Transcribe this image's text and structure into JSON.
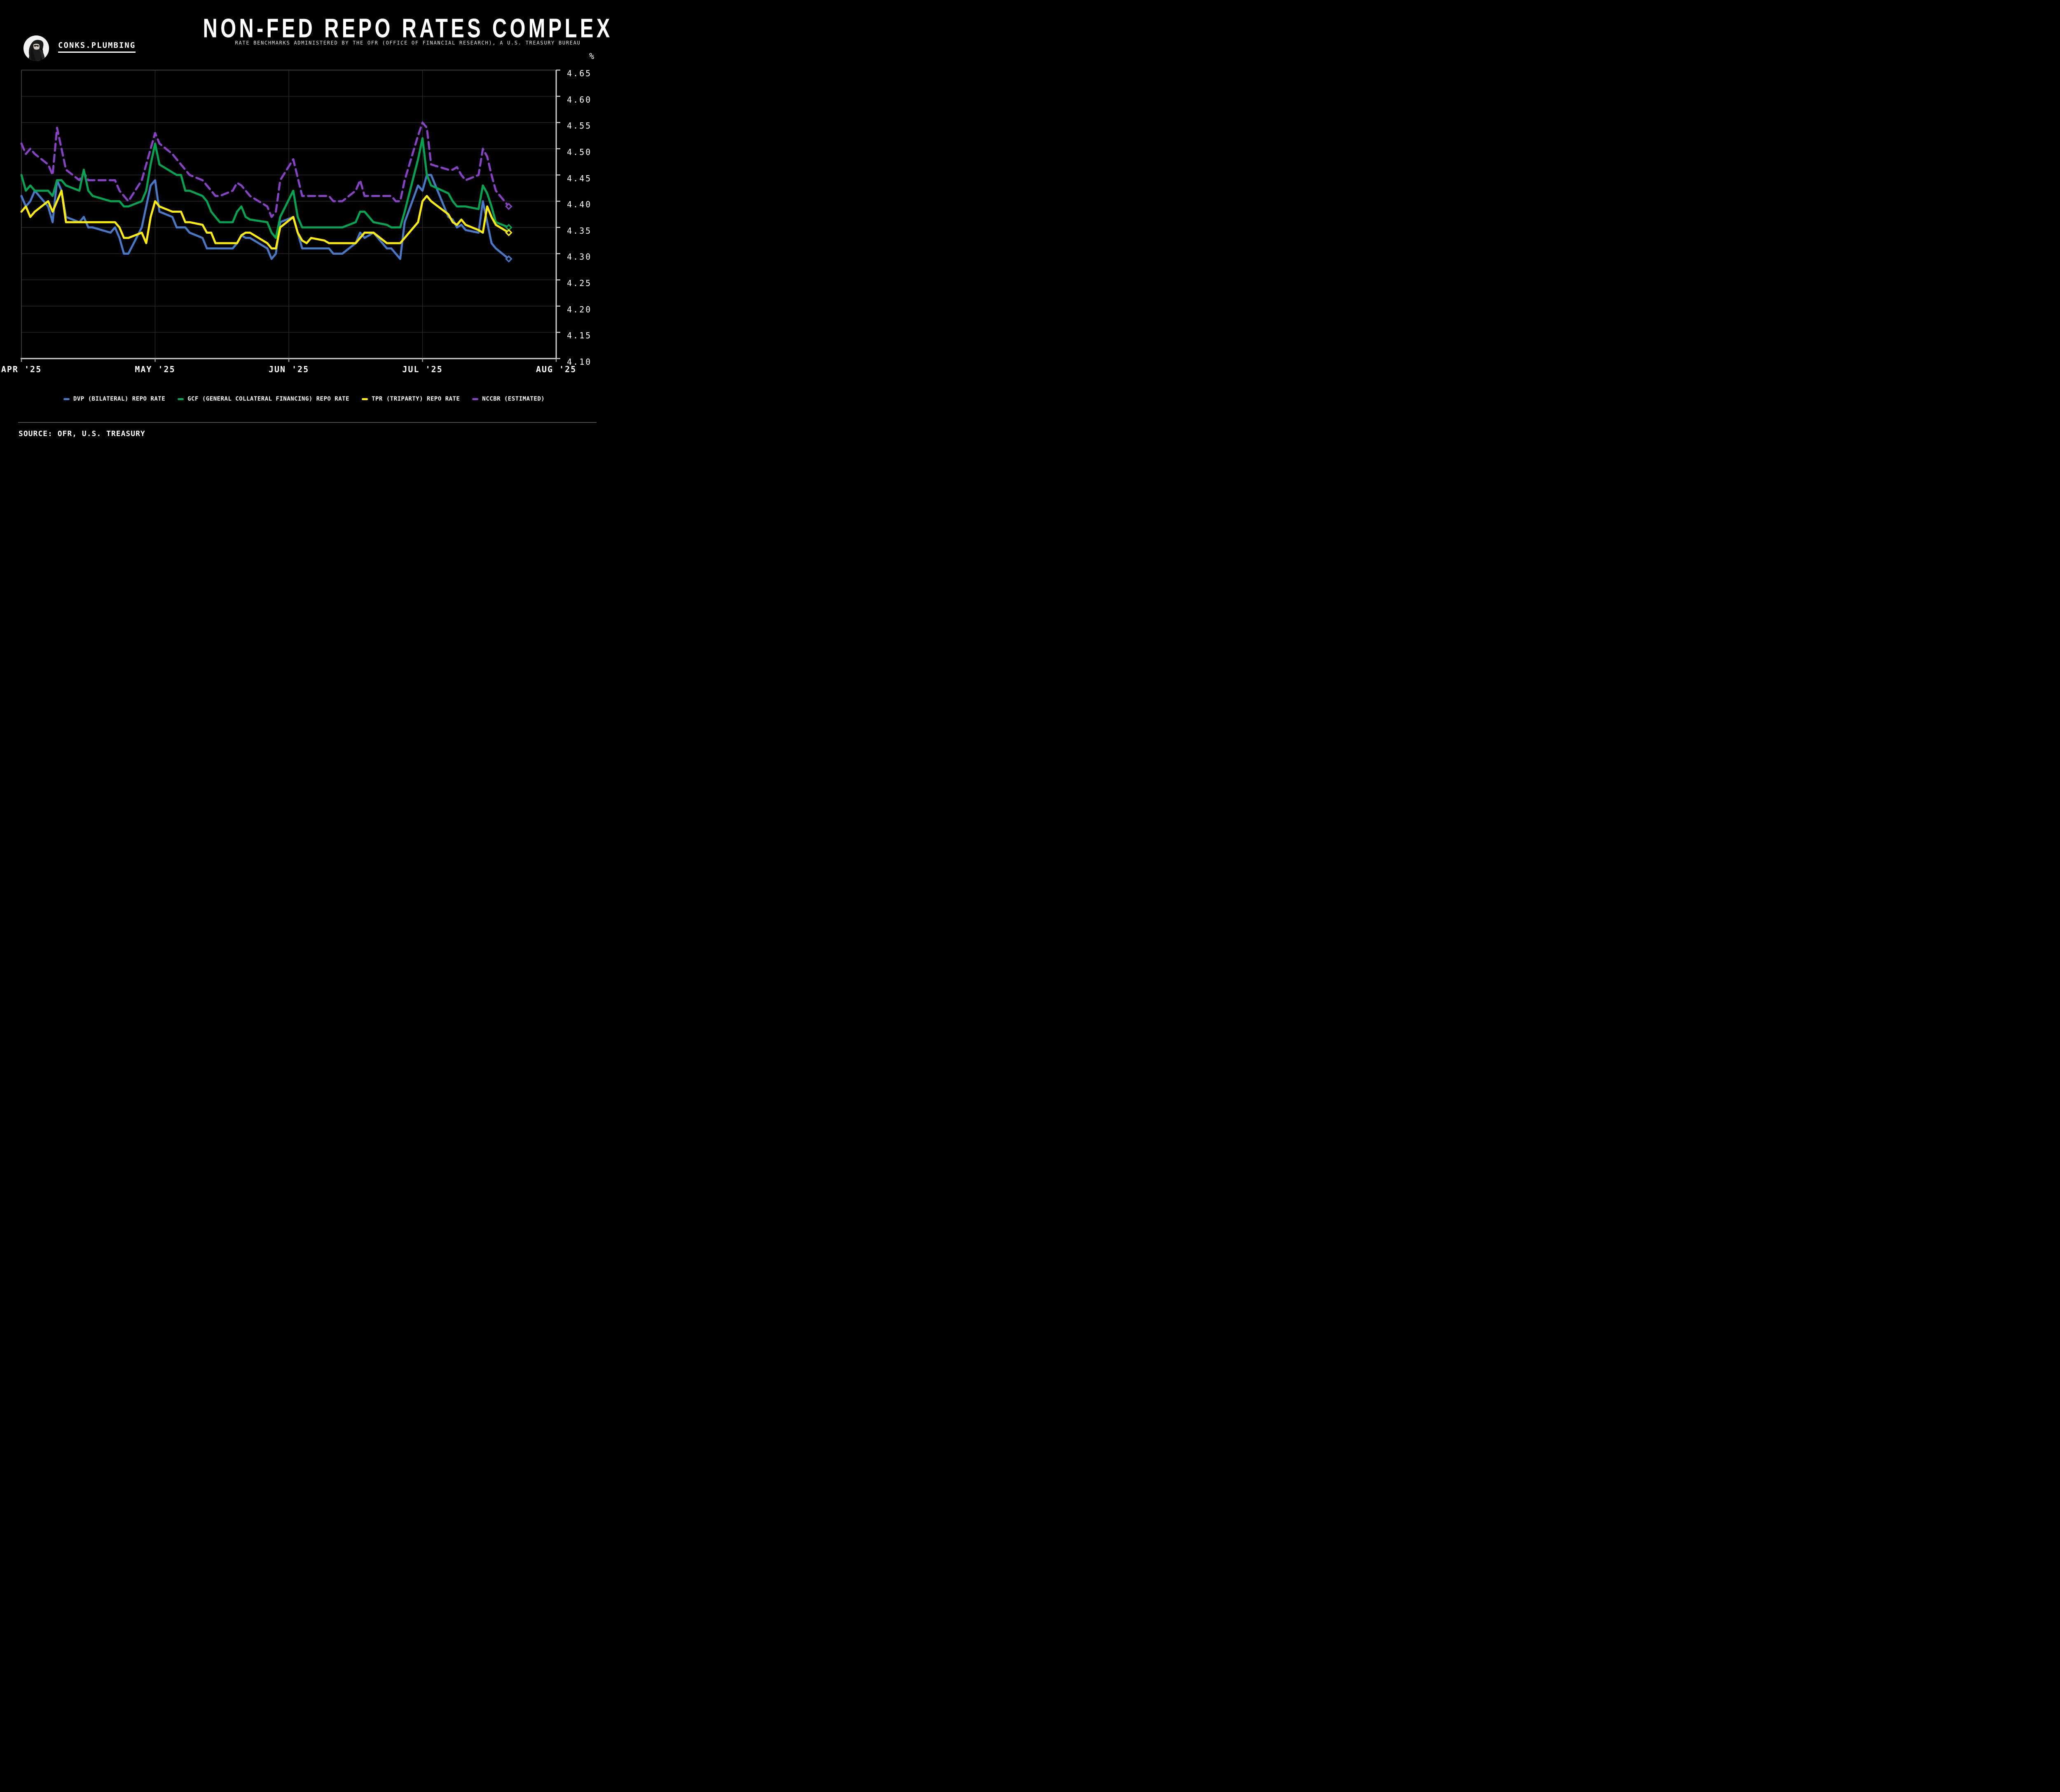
{
  "header": {
    "brand": "CONKS.PLUMBING",
    "title": "NON-FED REPO RATES COMPLEX",
    "subtitle": "RATE BENCHMARKS ADMINISTERED BY THE OFR (OFFICE OF FINANCIAL RESEARCH), A U.S. TREASURY BUREAU"
  },
  "source_line": "SOURCE: OFR, U.S. TREASURY",
  "colors": {
    "background": "#000000",
    "gridline": "#262626",
    "frame_dark": "#3a3a3a",
    "frame_light": "#d2d2d2",
    "dvp_blue": "#4878c8",
    "gcf_green": "#00a651",
    "tpr_yellow": "#ffee00",
    "nccbr_purple": "#8842c8"
  },
  "chart_data": {
    "type": "line",
    "ylabel": "%",
    "ylim": [
      4.1,
      4.65
    ],
    "yticks": [
      4.65,
      4.6,
      4.55,
      4.5,
      4.45,
      4.4,
      4.35,
      4.3,
      4.25,
      4.2,
      4.15,
      4.1
    ],
    "xticks": [
      {
        "label": "APR '25",
        "month": 4
      },
      {
        "label": "MAY '25",
        "month": 5
      },
      {
        "label": "JUN '25",
        "month": 6
      },
      {
        "label": "JUL '25",
        "month": 7
      },
      {
        "label": "AUG '25",
        "month": 8
      }
    ],
    "grid": true,
    "legend_position": "bottom",
    "dates": [
      "04-01",
      "04-02",
      "04-03",
      "04-04",
      "04-07",
      "04-08",
      "04-09",
      "04-10",
      "04-11",
      "04-14",
      "04-15",
      "04-16",
      "04-17",
      "04-21",
      "04-22",
      "04-23",
      "04-24",
      "04-25",
      "04-28",
      "04-29",
      "04-30",
      "05-01",
      "05-02",
      "05-05",
      "05-06",
      "05-07",
      "05-08",
      "05-09",
      "05-12",
      "05-13",
      "05-14",
      "05-15",
      "05-16",
      "05-19",
      "05-20",
      "05-21",
      "05-22",
      "05-23",
      "05-27",
      "05-28",
      "05-29",
      "05-30",
      "06-02",
      "06-03",
      "06-04",
      "06-05",
      "06-06",
      "06-09",
      "06-10",
      "06-11",
      "06-12",
      "06-13",
      "06-16",
      "06-17",
      "06-18",
      "06-20",
      "06-23",
      "06-24",
      "06-25",
      "06-26",
      "06-27",
      "06-30",
      "07-01",
      "07-02",
      "07-03",
      "07-07",
      "07-08",
      "07-09",
      "07-10",
      "07-11",
      "07-14",
      "07-15",
      "07-16",
      "07-17",
      "07-18",
      "07-21"
    ],
    "series": [
      {
        "key": "nccbr",
        "label": "NCCBR (ESTIMATED)",
        "color": "#8842c8",
        "dashed": true,
        "end_marker": "diamond",
        "values": [
          4.51,
          4.49,
          4.5,
          4.49,
          4.47,
          4.45,
          4.54,
          4.5,
          4.46,
          4.44,
          4.455,
          4.44,
          4.44,
          4.44,
          4.44,
          4.42,
          4.41,
          4.4,
          4.44,
          4.47,
          4.5,
          4.53,
          4.51,
          4.49,
          4.48,
          4.47,
          4.46,
          4.45,
          4.44,
          4.43,
          4.42,
          4.41,
          4.41,
          4.42,
          4.435,
          4.43,
          4.42,
          4.41,
          4.39,
          4.37,
          4.38,
          4.44,
          4.48,
          4.445,
          4.41,
          4.41,
          4.41,
          4.41,
          4.41,
          4.4,
          4.4,
          4.4,
          4.42,
          4.44,
          4.41,
          4.41,
          4.41,
          4.41,
          4.4,
          4.4,
          4.44,
          4.525,
          4.55,
          4.54,
          4.47,
          4.46,
          4.46,
          4.465,
          4.45,
          4.44,
          4.45,
          4.5,
          4.485,
          4.45,
          4.42,
          4.39
        ]
      },
      {
        "key": "dvp",
        "label": "DVP (BILATERAL) REPO RATE",
        "color": "#4878c8",
        "dashed": false,
        "end_marker": "diamond",
        "values": [
          4.41,
          4.39,
          4.4,
          4.42,
          4.39,
          4.36,
          4.44,
          4.42,
          4.37,
          4.36,
          4.37,
          4.35,
          4.35,
          4.34,
          4.35,
          4.33,
          4.3,
          4.3,
          4.35,
          4.39,
          4.43,
          4.44,
          4.38,
          4.37,
          4.35,
          4.35,
          4.35,
          4.34,
          4.33,
          4.31,
          4.31,
          4.31,
          4.31,
          4.31,
          4.32,
          4.335,
          4.33,
          4.33,
          4.31,
          4.29,
          4.3,
          4.36,
          4.37,
          4.34,
          4.31,
          4.31,
          4.31,
          4.31,
          4.31,
          4.3,
          4.3,
          4.3,
          4.32,
          4.34,
          4.33,
          4.34,
          4.31,
          4.31,
          4.3,
          4.29,
          4.36,
          4.43,
          4.42,
          4.45,
          4.45,
          4.37,
          4.365,
          4.35,
          4.355,
          4.345,
          4.34,
          4.4,
          4.36,
          4.32,
          4.31,
          4.29
        ]
      },
      {
        "key": "gcf",
        "label": "GCF (GENERAL COLLATERAL FINANCING) REPO RATE",
        "color": "#00a651",
        "dashed": false,
        "end_marker": "diamond",
        "values": [
          4.45,
          4.42,
          4.43,
          4.42,
          4.42,
          4.41,
          4.44,
          4.44,
          4.43,
          4.42,
          4.46,
          4.42,
          4.41,
          4.4,
          4.4,
          4.4,
          4.39,
          4.39,
          4.4,
          4.42,
          4.47,
          4.51,
          4.47,
          4.455,
          4.45,
          4.45,
          4.42,
          4.42,
          4.41,
          4.4,
          4.38,
          4.37,
          4.36,
          4.36,
          4.38,
          4.39,
          4.37,
          4.365,
          4.36,
          4.34,
          4.33,
          4.37,
          4.42,
          4.37,
          4.35,
          4.35,
          4.35,
          4.35,
          4.35,
          4.35,
          4.35,
          4.35,
          4.36,
          4.38,
          4.38,
          4.36,
          4.355,
          4.35,
          4.35,
          4.35,
          4.38,
          4.48,
          4.52,
          4.45,
          4.43,
          4.415,
          4.4,
          4.39,
          4.39,
          4.39,
          4.385,
          4.43,
          4.415,
          4.39,
          4.36,
          4.35
        ]
      },
      {
        "key": "tpr",
        "label": "TPR (TRIPARTY) REPO RATE",
        "color": "#ffee00",
        "dashed": false,
        "end_marker": "diamond",
        "values": [
          4.38,
          4.39,
          4.37,
          4.38,
          4.4,
          4.38,
          4.4,
          4.42,
          4.36,
          4.36,
          4.36,
          4.36,
          4.36,
          4.36,
          4.36,
          4.35,
          4.33,
          4.33,
          4.34,
          4.32,
          4.37,
          4.4,
          4.39,
          4.38,
          4.38,
          4.38,
          4.36,
          4.36,
          4.355,
          4.34,
          4.34,
          4.32,
          4.32,
          4.32,
          4.32,
          4.335,
          4.34,
          4.34,
          4.32,
          4.31,
          4.31,
          4.35,
          4.37,
          4.34,
          4.325,
          4.32,
          4.33,
          4.325,
          4.32,
          4.32,
          4.32,
          4.32,
          4.32,
          4.33,
          4.34,
          4.34,
          4.32,
          4.32,
          4.32,
          4.32,
          4.33,
          4.36,
          4.4,
          4.41,
          4.4,
          4.375,
          4.36,
          4.355,
          4.365,
          4.355,
          4.345,
          4.34,
          4.39,
          4.37,
          4.355,
          4.34
        ]
      }
    ],
    "legend_order": [
      "dvp",
      "gcf",
      "tpr",
      "nccbr"
    ]
  },
  "layout_note_values_visible_only": true
}
